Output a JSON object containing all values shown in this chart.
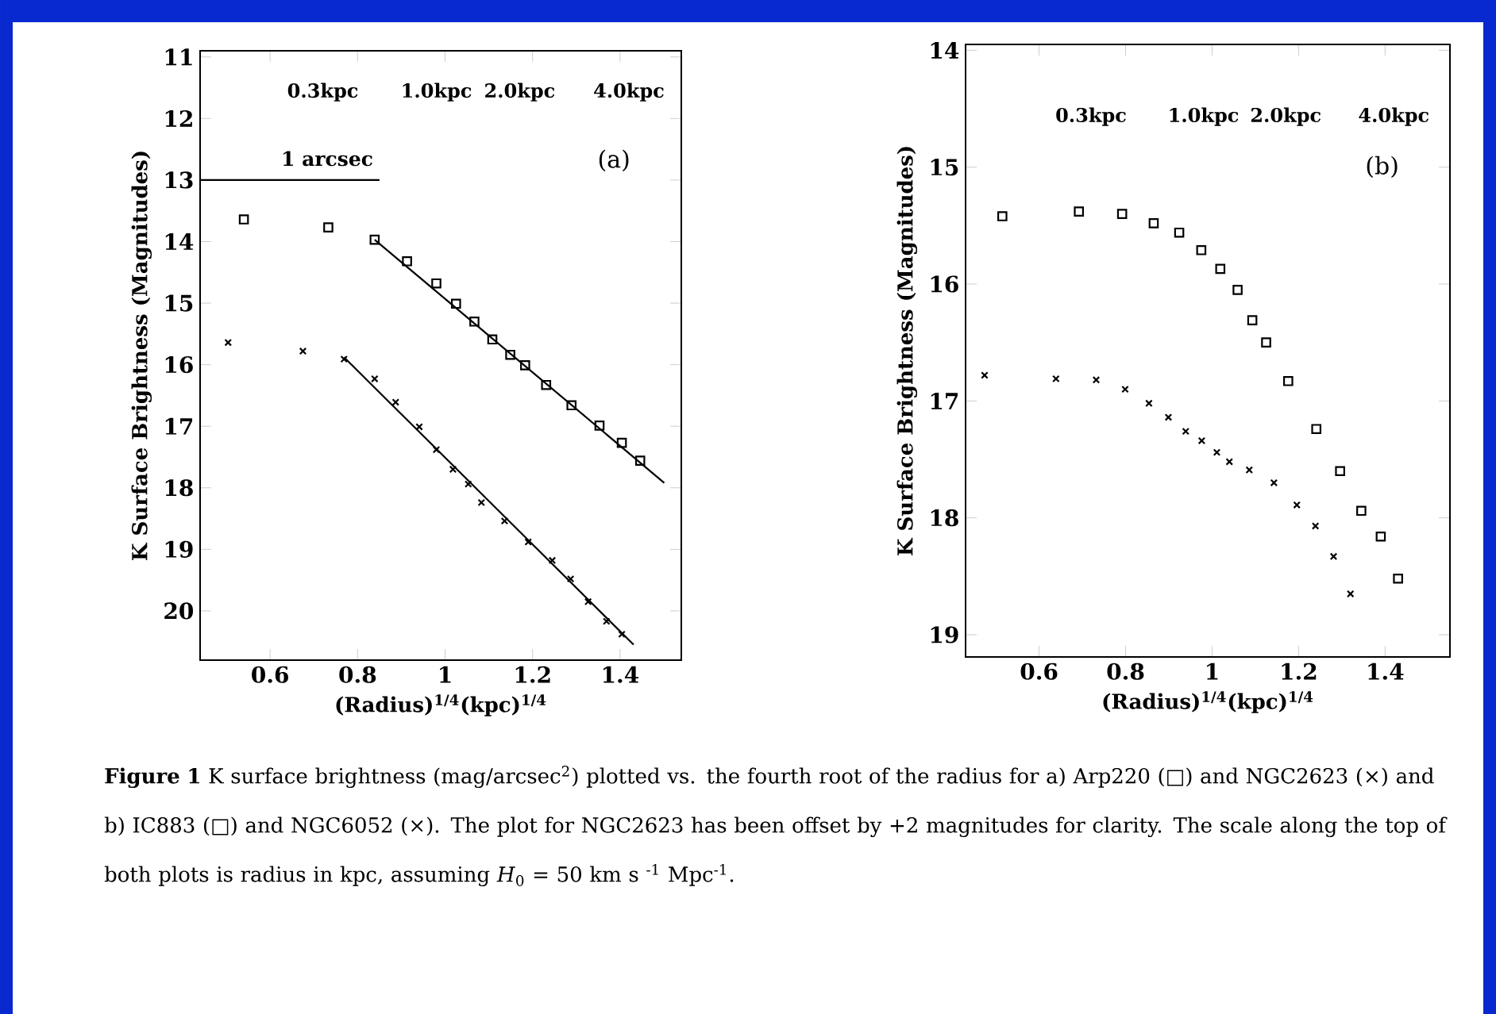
{
  "chart_data": [
    {
      "type": "scatter",
      "xlabel": "(Radius)$^{1/4}$(kpc)$^{1/4}$",
      "ylabel": "K Surface Brightness (Magnitudes)",
      "xlim": [
        0.44,
        1.54
      ],
      "ylim": [
        20.8,
        10.9
      ],
      "xticks": [
        {
          "value": 0.6,
          "label": "0.6"
        },
        {
          "value": 0.8,
          "label": "0.8"
        },
        1,
        {
          "value": 1.2,
          "label": "1.2"
        },
        {
          "value": 1.4,
          "label": "1.4"
        }
      ],
      "yticks": [
        11,
        12,
        13,
        14,
        15,
        16,
        17,
        18,
        19,
        20
      ],
      "annotations": [
        "(a)",
        "1 arcsec",
        "0.3kpc",
        "1.0kpc",
        "2.0kpc",
        "4.0kpc"
      ],
      "series": [
        {
          "marker": "square",
          "color": "#000000",
          "x": [
            0.54,
            0.733,
            0.839,
            0.913,
            0.98,
            1.025,
            1.067,
            1.108,
            1.149,
            1.183,
            1.231,
            1.289,
            1.353,
            1.404,
            1.446
          ],
          "values": [
            13.64,
            13.77,
            13.97,
            14.32,
            14.68,
            15.01,
            15.3,
            15.59,
            15.84,
            16.01,
            16.33,
            16.66,
            16.99,
            17.27,
            17.56
          ]
        },
        {
          "marker": "cross",
          "color": "#000000",
          "x": [
            0.504,
            0.675,
            0.769,
            0.839,
            0.887,
            0.941,
            0.98,
            1.018,
            1.053,
            1.083,
            1.136,
            1.19,
            1.245,
            1.287,
            1.327,
            1.369,
            1.404
          ],
          "values": [
            15.64,
            15.78,
            15.91,
            16.23,
            16.61,
            17.01,
            17.38,
            17.7,
            17.94,
            18.24,
            18.54,
            18.88,
            19.18,
            19.48,
            19.85,
            20.17,
            20.38
          ]
        },
        {
          "type": "line",
          "color": "#000000",
          "x": [
            0.839,
            1.501
          ],
          "values": [
            13.97,
            17.92
          ]
        },
        {
          "type": "line",
          "color": "#000000",
          "x": [
            0.769,
            1.431
          ],
          "values": [
            15.88,
            20.55
          ]
        },
        {
          "type": "line",
          "color": "#000000",
          "x": [
            0.44,
            0.85
          ],
          "values": [
            13,
            13
          ]
        }
      ]
    },
    {
      "type": "scatter",
      "xlabel": "(Radius)$^{1/4}$(kpc)$^{1/4}$",
      "ylabel": "K Surface Brightness (Magnitudes)",
      "xlim": [
        0.43,
        1.55
      ],
      "ylim": [
        19.19,
        13.95
      ],
      "xticks": [
        {
          "value": 0.6,
          "label": "0.6"
        },
        {
          "value": 0.8,
          "label": "0.8"
        },
        1,
        {
          "value": 1.2,
          "label": "1.2"
        },
        {
          "value": 1.4,
          "label": "1.4"
        }
      ],
      "yticks": [
        14,
        15,
        16,
        17,
        18,
        19
      ],
      "annotations": [
        "0.3kpc",
        "1.0kpc",
        "2.0kpc",
        "4.0kpc",
        "(b)",
        "**Figure 1**  K surface brightness (mag/arcsec$^{2}$) plotted vs. the fourth root of the radius for a) Arp220 (□) and NGC2623 (×) and b) IC883 (□) and NGC6052 (×). The plot for NGC2623 has been offset by +2 magnitudes for clarity. The scale along the top of both plots is radius in kpc, assuming *H*$_{0}$ = 50 km s $^{-1}$ Mpc$^{-1}$."
      ],
      "series": [
        {
          "marker": "square",
          "color": "#000000",
          "x": [
            0.515,
            0.692,
            0.792,
            0.865,
            0.924,
            0.975,
            1.019,
            1.059,
            1.093,
            1.125,
            1.176,
            1.241,
            1.296,
            1.345,
            1.39,
            1.43
          ],
          "values": [
            15.42,
            15.38,
            15.4,
            15.48,
            15.56,
            15.71,
            15.87,
            16.05,
            16.31,
            16.5,
            16.83,
            17.24,
            17.6,
            17.94,
            18.16,
            18.52
          ]
        },
        {
          "marker": "cross",
          "color": "#000000",
          "x": [
            0.474,
            0.639,
            0.732,
            0.799,
            0.854,
            0.899,
            0.939,
            0.976,
            1.011,
            1.04,
            1.086,
            1.143,
            1.196,
            1.239,
            1.281,
            1.32
          ],
          "values": [
            16.78,
            16.81,
            16.82,
            16.9,
            17.02,
            17.14,
            17.26,
            17.34,
            17.44,
            17.52,
            17.59,
            17.7,
            17.89,
            18.07,
            18.33,
            18.65
          ]
        }
      ]
    }
  ]
}
